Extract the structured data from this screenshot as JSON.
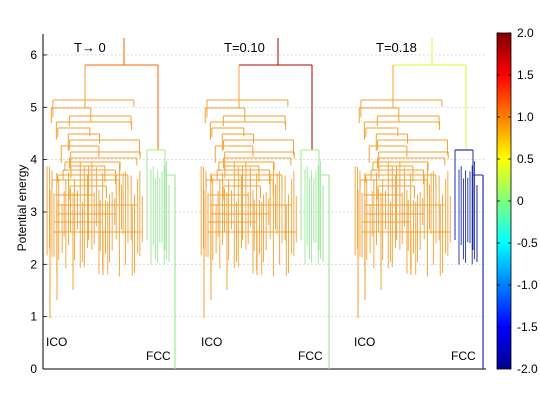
{
  "chart_data": {
    "type": "line",
    "subtype": "disconnectivity-graph",
    "ylabel": "Potential energy",
    "ylim": [
      0,
      6.4
    ],
    "yticks": [
      0,
      1,
      2,
      3,
      4,
      5,
      6
    ],
    "grid": "dotted horizontal",
    "panels": [
      {
        "title": "T→ 0",
        "left_label": "ICO",
        "right_label": "FCC",
        "root_color_value": 1.1,
        "fcc_branch_color_value": 0.1
      },
      {
        "title": "T=0.10",
        "left_label": "ICO",
        "right_label": "FCC",
        "root_color_value": 1.8,
        "fcc_branch_color_value": 0.1
      },
      {
        "title": "T=0.18",
        "left_label": "ICO",
        "right_label": "FCC",
        "root_color_value": 0.3,
        "fcc_branch_color_value": -1.8
      }
    ],
    "colorbar": {
      "colormap": "jet",
      "range": [
        -2.0,
        2.0
      ],
      "ticks": [
        "2.0",
        "1.5",
        "1.0",
        "0.5",
        "0",
        "-0.5",
        "-1.0",
        "-1.5",
        "-2.0"
      ]
    },
    "colors": {
      "ico_branch": "#f7a030",
      "fcc_t0": "#9de89a",
      "fcc_t018": "#1e2ea8"
    }
  }
}
